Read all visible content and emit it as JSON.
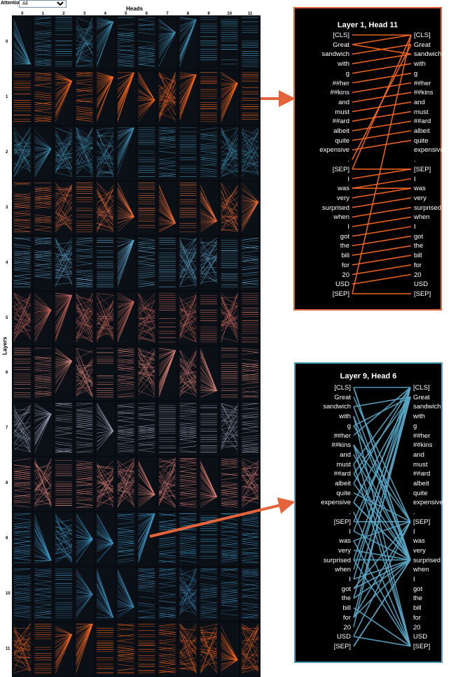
{
  "toolbar": {
    "attention_label": "Attention:",
    "attention_value": "All",
    "options": [
      "All"
    ]
  },
  "grid": {
    "heads_label": "Heads",
    "layers_label": "Layers",
    "heads": [
      "0",
      "1",
      "2",
      "3",
      "4",
      "5",
      "6",
      "7",
      "8",
      "9",
      "10",
      "11"
    ],
    "layers": [
      "0",
      "1",
      "2",
      "3",
      "4",
      "5",
      "6",
      "7",
      "8",
      "9",
      "10",
      "11"
    ],
    "layer_colors": [
      "#3f8fb0",
      "#ff6a1f",
      "#3f8fb0",
      "#f2703a",
      "#5ea3c8",
      "#c96a5e",
      "#d98377",
      "#9aa3b8",
      "#e8867a",
      "#3f9fd0",
      "#3c86b2",
      "#ff6a1f"
    ],
    "highlighted": [
      {
        "layer": 1,
        "head": 11
      },
      {
        "layer": 9,
        "head": 6
      }
    ]
  },
  "tokens": [
    "[CLS]",
    "Great",
    "sandwich",
    "with",
    "g",
    "##her",
    "##kins",
    "and",
    "must",
    "##ard",
    "albeit",
    "quite",
    "expensive",
    ".",
    "[SEP]",
    "I",
    "was",
    "very",
    "surprised",
    "when",
    "I",
    "got",
    "the",
    "bill",
    "for",
    "20",
    "USD",
    "[SEP]"
  ],
  "panels": [
    {
      "title": "Layer 1, Head 11",
      "color": "#ff6a1f",
      "links": [
        [
          0,
          0
        ],
        [
          1,
          0
        ],
        [
          2,
          1
        ],
        [
          3,
          2
        ],
        [
          4,
          3
        ],
        [
          5,
          4
        ],
        [
          6,
          5
        ],
        [
          7,
          6
        ],
        [
          8,
          7
        ],
        [
          9,
          8
        ],
        [
          10,
          9
        ],
        [
          11,
          10
        ],
        [
          12,
          11
        ],
        [
          13,
          1
        ],
        [
          14,
          14
        ],
        [
          15,
          14
        ],
        [
          16,
          15
        ],
        [
          17,
          16
        ],
        [
          18,
          17
        ],
        [
          19,
          18
        ],
        [
          20,
          19
        ],
        [
          21,
          20
        ],
        [
          22,
          21
        ],
        [
          23,
          22
        ],
        [
          24,
          23
        ],
        [
          25,
          24
        ],
        [
          26,
          25
        ],
        [
          27,
          27
        ],
        [
          16,
          16
        ],
        [
          27,
          0
        ],
        [
          14,
          0
        ],
        [
          1,
          2
        ]
      ]
    },
    {
      "title": "Layer 9, Head 6",
      "color": "#5aa8c8",
      "hubs": [
        0,
        14,
        18,
        27,
        1
      ]
    }
  ]
}
